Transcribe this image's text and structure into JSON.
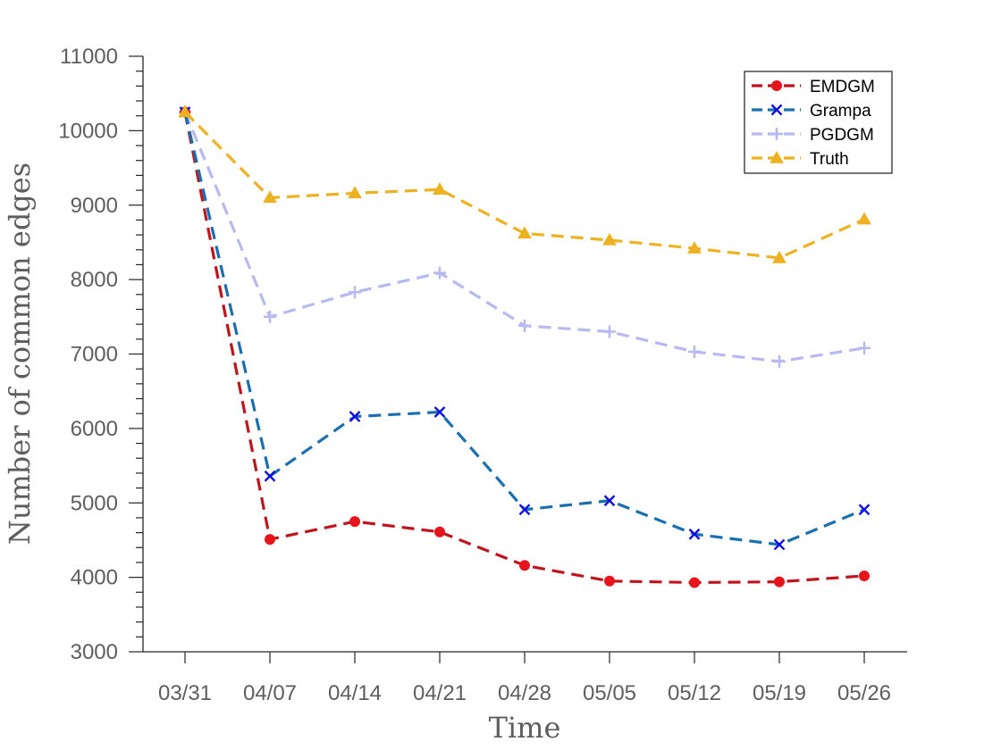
{
  "chart_data": {
    "type": "line",
    "title": "",
    "xlabel": "Time",
    "ylabel": "Number of common edges",
    "categories": [
      "03/31",
      "04/07",
      "04/14",
      "04/21",
      "04/28",
      "05/05",
      "05/12",
      "05/19",
      "05/26"
    ],
    "ylim": [
      3000,
      11000
    ],
    "yticks": [
      3000,
      4000,
      5000,
      6000,
      7000,
      8000,
      9000,
      10000,
      11000
    ],
    "grid": false,
    "legend_position": "top-right",
    "series": [
      {
        "name": "EMDGM",
        "color": "#c0141c",
        "marker_color": "#e8141c",
        "marker": "circle",
        "values": [
          10250,
          4510,
          4750,
          4610,
          4160,
          3950,
          3930,
          3940,
          4020
        ]
      },
      {
        "name": "Grampa",
        "color": "#1a6fb0",
        "marker_color": "#1010e0",
        "marker": "x",
        "values": [
          10250,
          5360,
          6160,
          6220,
          4910,
          5030,
          4580,
          4440,
          4910
        ]
      },
      {
        "name": "PGDGM",
        "color": "#b9b9f2",
        "marker_color": "#b9b9f2",
        "marker": "plus",
        "values": [
          10250,
          7500,
          7830,
          8090,
          7380,
          7300,
          7030,
          6900,
          7080
        ]
      },
      {
        "name": "Truth",
        "color": "#eeb11f",
        "marker_color": "#eeb11f",
        "marker": "triangle",
        "values": [
          10250,
          9100,
          9160,
          9210,
          8620,
          8530,
          8420,
          8290,
          8810
        ]
      }
    ]
  }
}
